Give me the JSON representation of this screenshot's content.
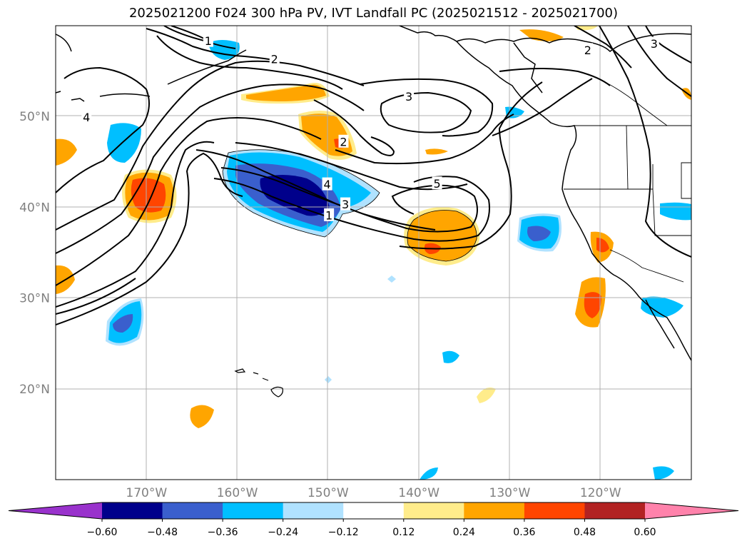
{
  "title": "2025021200 F024 300 hPa PV, IVT Landfall PC (2025021512 - 2025021700)",
  "lat_labels": [
    {
      "text": "50°N",
      "lat": 50
    },
    {
      "text": "40°N",
      "lat": 40
    },
    {
      "text": "30°N",
      "lat": 30
    },
    {
      "text": "20°N",
      "lat": 20
    }
  ],
  "lon_labels": [
    {
      "text": "170°W",
      "lon": -170
    },
    {
      "text": "160°W",
      "lon": -160
    },
    {
      "text": "150°W",
      "lon": -150
    },
    {
      "text": "140°W",
      "lon": -140
    },
    {
      "text": "130°W",
      "lon": -130
    },
    {
      "text": "120°W",
      "lon": -120
    }
  ],
  "colorbar": {
    "ticks": [
      "−0.60",
      "−0.48",
      "−0.36",
      "−0.24",
      "−0.12",
      "0.12",
      "0.24",
      "0.36",
      "0.48",
      "0.60"
    ],
    "colors": [
      "#9932cc",
      "#00008b",
      "#3a5fcd",
      "#00bfff",
      "#b0e2ff",
      "#ffffff",
      "#ffec8b",
      "#ffa500",
      "#ff4500",
      "#b22222",
      "#ff82ab"
    ]
  },
  "contour_labels": [
    {
      "text": "1",
      "lon": -163.2,
      "lat": 58.3
    },
    {
      "text": "2",
      "lon": -155.9,
      "lat": 56.3
    },
    {
      "text": "3",
      "lon": -141.1,
      "lat": 52.2
    },
    {
      "text": "4",
      "lon": -176.6,
      "lat": 49.9
    },
    {
      "text": "2",
      "lon": -148.3,
      "lat": 47.2
    },
    {
      "text": "5",
      "lon": -138.0,
      "lat": 42.6
    },
    {
      "text": "4",
      "lon": -150.1,
      "lat": 42.5
    },
    {
      "text": "3",
      "lon": -148.1,
      "lat": 40.3
    },
    {
      "text": "1",
      "lon": -149.9,
      "lat": 39.1
    },
    {
      "text": "2",
      "lon": -121.4,
      "lat": 57.3
    },
    {
      "text": "3",
      "lon": -114.1,
      "lat": 58.0
    }
  ]
}
